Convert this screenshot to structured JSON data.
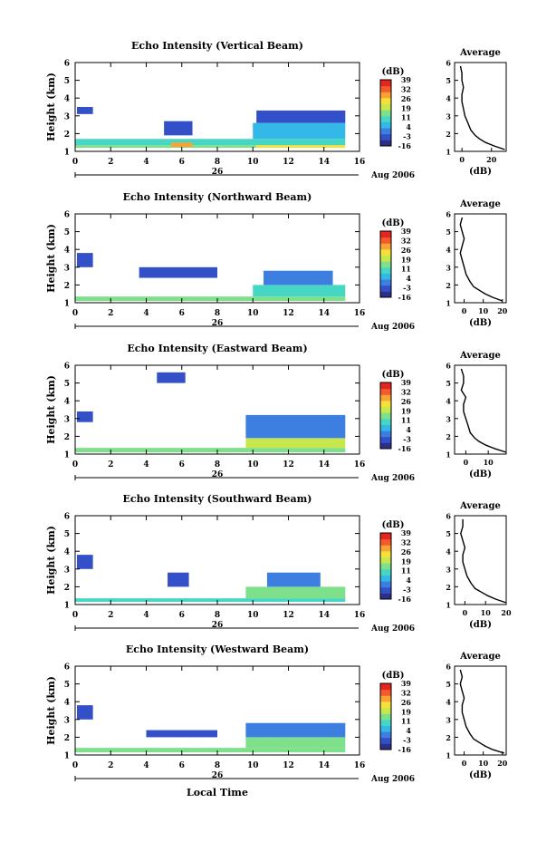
{
  "common": {
    "ylabel": "Height (km)",
    "xlabel": "Local Time",
    "date_day": "26",
    "date_month": "Aug 2006",
    "colorbar_unit": "(dB)",
    "average_title": "Average",
    "average_xlabel": "(dB)",
    "main_xticks": [
      0,
      2,
      4,
      6,
      8,
      10,
      12,
      14,
      16
    ],
    "yticks": [
      1,
      2,
      3,
      4,
      5,
      6
    ],
    "xlim": [
      0,
      16
    ],
    "ylim": [
      1,
      6
    ],
    "colorbar_ticks": [
      -16,
      -3,
      4,
      11,
      19,
      26,
      32,
      39
    ],
    "colorbar_range": [
      -16,
      39
    ],
    "palette": [
      "#2b2f86",
      "#3350c8",
      "#3d7fe0",
      "#34b8e8",
      "#46d6c4",
      "#7ee08a",
      "#c6e84c",
      "#f6e13a",
      "#f9a432",
      "#f45a2c",
      "#e52520"
    ]
  },
  "chart_data": [
    {
      "type": "heatmap",
      "title": "Echo Intensity (Vertical Beam)",
      "xlabel": "Local Time",
      "ylabel": "Height (km)",
      "xlim": [
        0,
        16
      ],
      "ylim": [
        1,
        6
      ],
      "segments": [
        {
          "x": [
            0,
            10.2
          ],
          "y": [
            1.2,
            1.35
          ],
          "value": 13
        },
        {
          "x": [
            10.2,
            15.2
          ],
          "y": [
            1.2,
            1.35
          ],
          "value": 20
        },
        {
          "x": [
            0,
            15.2
          ],
          "y": [
            1.35,
            1.7
          ],
          "value": 8
        },
        {
          "x": [
            5.4,
            6.6
          ],
          "y": [
            1.25,
            1.5
          ],
          "value": 24
        },
        {
          "x": [
            10,
            15.2
          ],
          "y": [
            1.7,
            2.6
          ],
          "value": 3
        },
        {
          "x": [
            5,
            6.6
          ],
          "y": [
            1.9,
            2.7
          ],
          "value": -8
        },
        {
          "x": [
            0.1,
            1
          ],
          "y": [
            3.1,
            3.5
          ],
          "value": -8
        },
        {
          "x": [
            10.2,
            15.2
          ],
          "y": [
            2.6,
            3.3
          ],
          "value": -10
        }
      ],
      "average": {
        "xlim": [
          -5,
          30
        ],
        "xticks": [
          0,
          20
        ],
        "x": [
          29,
          22,
          16,
          12,
          9,
          6,
          4,
          2,
          1,
          0,
          0,
          1,
          0,
          0,
          -1
        ],
        "y": [
          1.1,
          1.3,
          1.5,
          1.7,
          1.9,
          2.2,
          2.6,
          3.0,
          3.4,
          3.8,
          4.2,
          4.6,
          5.0,
          5.4,
          5.8
        ]
      }
    },
    {
      "type": "heatmap",
      "title": "Echo Intensity (Northward Beam)",
      "xlabel": "Local Time",
      "ylabel": "Height (km)",
      "xlim": [
        0,
        16
      ],
      "ylim": [
        1,
        6
      ],
      "segments": [
        {
          "x": [
            0,
            15.2
          ],
          "y": [
            1.1,
            1.35
          ],
          "value": 12
        },
        {
          "x": [
            10,
            15.2
          ],
          "y": [
            1.35,
            2.0
          ],
          "value": 6
        },
        {
          "x": [
            0.1,
            1
          ],
          "y": [
            3,
            3.8
          ],
          "value": -9
        },
        {
          "x": [
            3.6,
            8
          ],
          "y": [
            2.4,
            3.0
          ],
          "value": -11
        },
        {
          "x": [
            10.6,
            14.5
          ],
          "y": [
            2.0,
            2.8
          ],
          "value": -5
        }
      ],
      "average": {
        "xlim": [
          -5,
          22
        ],
        "xticks": [
          0,
          10,
          20
        ],
        "x": [
          20,
          15,
          11,
          8,
          5,
          3,
          1,
          0,
          -1,
          -2,
          -1,
          0,
          -1,
          -2,
          -1
        ],
        "y": [
          1.1,
          1.3,
          1.5,
          1.7,
          1.9,
          2.2,
          2.6,
          3.0,
          3.4,
          3.8,
          4.2,
          4.6,
          5.0,
          5.4,
          5.8
        ]
      }
    },
    {
      "type": "heatmap",
      "title": "Echo Intensity (Eastward Beam)",
      "xlabel": "Local Time",
      "ylabel": "Height (km)",
      "xlim": [
        0,
        16
      ],
      "ylim": [
        1,
        6
      ],
      "segments": [
        {
          "x": [
            0,
            15.2
          ],
          "y": [
            1.1,
            1.35
          ],
          "value": 9
        },
        {
          "x": [
            9.6,
            15.2
          ],
          "y": [
            1.35,
            1.9
          ],
          "value": 14
        },
        {
          "x": [
            9.6,
            15.2
          ],
          "y": [
            1.9,
            3.2
          ],
          "value": -3
        },
        {
          "x": [
            0.1,
            1
          ],
          "y": [
            2.8,
            3.4
          ],
          "value": -9
        },
        {
          "x": [
            4.6,
            6.2
          ],
          "y": [
            5.0,
            5.6
          ],
          "value": -10
        }
      ],
      "average": {
        "xlim": [
          -5,
          18
        ],
        "xticks": [
          0,
          10
        ],
        "x": [
          18,
          13,
          9,
          6,
          4,
          2,
          1,
          0,
          -1,
          -1,
          0,
          -2,
          -1,
          -1,
          -2
        ],
        "y": [
          1.1,
          1.3,
          1.5,
          1.7,
          1.9,
          2.2,
          2.6,
          3.0,
          3.4,
          3.8,
          4.2,
          4.6,
          5.0,
          5.4,
          5.8
        ]
      }
    },
    {
      "type": "heatmap",
      "title": "Echo Intensity (Southward Beam)",
      "xlabel": "Local Time",
      "ylabel": "Height (km)",
      "xlim": [
        0,
        16
      ],
      "ylim": [
        1,
        6
      ],
      "segments": [
        {
          "x": [
            0,
            15.2
          ],
          "y": [
            1.15,
            1.35
          ],
          "value": 6
        },
        {
          "x": [
            9.6,
            15.2
          ],
          "y": [
            1.35,
            2.0
          ],
          "value": 11
        },
        {
          "x": [
            10.8,
            13.8
          ],
          "y": [
            2.0,
            2.8
          ],
          "value": -5
        },
        {
          "x": [
            0.1,
            1
          ],
          "y": [
            3.0,
            3.8
          ],
          "value": -9
        },
        {
          "x": [
            5.2,
            6.4
          ],
          "y": [
            2.0,
            2.8
          ],
          "value": -7
        }
      ],
      "average": {
        "xlim": [
          -5,
          20
        ],
        "xticks": [
          0,
          10,
          20
        ],
        "x": [
          20,
          15,
          11,
          8,
          5,
          3,
          1,
          0,
          -1,
          -1,
          0,
          -1,
          -2,
          -1,
          -1
        ],
        "y": [
          1.1,
          1.3,
          1.5,
          1.7,
          1.9,
          2.2,
          2.6,
          3.0,
          3.4,
          3.8,
          4.2,
          4.6,
          5.0,
          5.4,
          5.8
        ]
      }
    },
    {
      "type": "heatmap",
      "title": "Echo Intensity (Westward Beam)",
      "xlabel": "Local Time",
      "ylabel": "Height (km)",
      "xlim": [
        0,
        16
      ],
      "ylim": [
        1,
        6
      ],
      "segments": [
        {
          "x": [
            0,
            15.2
          ],
          "y": [
            1.15,
            1.4
          ],
          "value": 10
        },
        {
          "x": [
            9.6,
            15.2
          ],
          "y": [
            1.4,
            2.0
          ],
          "value": 13
        },
        {
          "x": [
            9.6,
            15.2
          ],
          "y": [
            2.0,
            2.8
          ],
          "value": -4
        },
        {
          "x": [
            0.1,
            1
          ],
          "y": [
            3.0,
            3.8
          ],
          "value": -9
        },
        {
          "x": [
            4.0,
            8.0
          ],
          "y": [
            2.0,
            2.4
          ],
          "value": -11
        }
      ],
      "average": {
        "xlim": [
          -5,
          22
        ],
        "xticks": [
          0,
          10,
          20
        ],
        "x": [
          21,
          15,
          11,
          8,
          5,
          3,
          1,
          0,
          -1,
          -1,
          0,
          -1,
          -2,
          -1,
          -2
        ],
        "y": [
          1.1,
          1.3,
          1.5,
          1.7,
          1.9,
          2.2,
          2.6,
          3.0,
          3.4,
          3.8,
          4.2,
          4.6,
          5.0,
          5.4,
          5.8
        ]
      }
    }
  ]
}
